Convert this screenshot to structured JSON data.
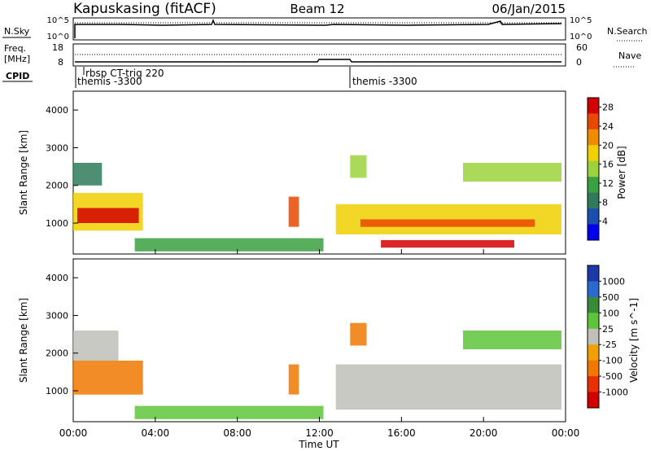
{
  "header": {
    "station": "Kapuskasing (fitACF)",
    "beam": "Beam 12",
    "date": "06/Jan/2015"
  },
  "nsky": {
    "label": "N.Sky",
    "tick_top": "10^5",
    "tick_bottom": "10^0",
    "right_label": "N.Search",
    "right_tick_top": "10^5",
    "right_tick_bottom": "10^0"
  },
  "freq": {
    "label_line1": "Freq.",
    "label_line2": "[MHz]",
    "tick_top": "18",
    "tick_bottom": "8",
    "right_label": "Nave",
    "right_tick_top": "60",
    "right_tick_bottom": "0"
  },
  "cpid": {
    "label": "CPID",
    "entries": [
      {
        "text": "rbsp CT-trig 220",
        "hour": 0.5
      },
      {
        "text": "themis -3300",
        "hour": 0.3
      },
      {
        "text": "themis -3300",
        "hour": 13.5
      }
    ]
  },
  "x_axis": {
    "label": "Time UT",
    "ticks": [
      "00:00",
      "04:00",
      "08:00",
      "12:00",
      "16:00",
      "20:00",
      "00:00"
    ]
  },
  "colors": {
    "power": [
      "#0000ee",
      "#1a4fb0",
      "#2f7a5a",
      "#3aa040",
      "#9cd23c",
      "#f0d000",
      "#f08c00",
      "#e84800",
      "#d40000"
    ],
    "velocity": [
      "#1a3aa8",
      "#2a6ad0",
      "#3a8a3a",
      "#5ec43a",
      "#c0c0b8",
      "#f0a000",
      "#f07800",
      "#e83000",
      "#d00000"
    ],
    "ground_scatter": "#c0c0b8"
  },
  "chart_data": [
    {
      "type": "heatmap",
      "panel": "power",
      "ylabel": "Slant Range [km]",
      "xlabel": "",
      "xlim": [
        0,
        24
      ],
      "ylim": [
        180,
        4500
      ],
      "yticks": [
        "1000",
        "2000",
        "3000",
        "4000"
      ],
      "colorbar": {
        "label": "Power [dB]",
        "ticks": [
          "4",
          "8",
          "12",
          "16",
          "20",
          "24",
          "28"
        ],
        "range": [
          0,
          30
        ]
      },
      "regions": [
        {
          "t": [
            0.0,
            3.4
          ],
          "r": [
            800,
            1800
          ],
          "level": 5
        },
        {
          "t": [
            0.2,
            3.2
          ],
          "r": [
            1000,
            1400
          ],
          "level": 8
        },
        {
          "t": [
            0.0,
            1.4
          ],
          "r": [
            2000,
            2600
          ],
          "level": 2
        },
        {
          "t": [
            3.0,
            12.2
          ],
          "r": [
            250,
            600
          ],
          "level": 3
        },
        {
          "t": [
            10.5,
            11.0
          ],
          "r": [
            900,
            1700
          ],
          "level": 7
        },
        {
          "t": [
            12.8,
            23.8
          ],
          "r": [
            700,
            1500
          ],
          "level": 5
        },
        {
          "t": [
            14.0,
            22.5
          ],
          "r": [
            900,
            1100
          ],
          "level": 7
        },
        {
          "t": [
            15.0,
            21.5
          ],
          "r": [
            350,
            550
          ],
          "level": 8
        },
        {
          "t": [
            13.5,
            14.3
          ],
          "r": [
            2200,
            2800
          ],
          "level": 4
        },
        {
          "t": [
            19.0,
            23.8
          ],
          "r": [
            2100,
            2600
          ],
          "level": 4
        }
      ]
    },
    {
      "type": "heatmap",
      "panel": "velocity",
      "ylabel": "Slant Range [km]",
      "xlabel": "Time UT",
      "xlim": [
        0,
        24
      ],
      "ylim": [
        180,
        4500
      ],
      "yticks": [
        "1000",
        "2000",
        "3000",
        "4000"
      ],
      "colorbar": {
        "label": "Velocity [m s^-1]",
        "ticks": [
          "1000",
          "500",
          "100",
          "25",
          "-25",
          "-100",
          "-500",
          "-1000"
        ]
      },
      "regions": [
        {
          "t": [
            0.0,
            3.4
          ],
          "r": [
            900,
            1800
          ],
          "level": 6
        },
        {
          "t": [
            0.0,
            2.2
          ],
          "r": [
            1800,
            2600
          ],
          "level": 4
        },
        {
          "t": [
            3.0,
            12.2
          ],
          "r": [
            250,
            600
          ],
          "level": 3
        },
        {
          "t": [
            10.5,
            11.0
          ],
          "r": [
            900,
            1700
          ],
          "level": 6
        },
        {
          "t": [
            12.8,
            23.8
          ],
          "r": [
            500,
            1700
          ],
          "level": 4
        },
        {
          "t": [
            13.5,
            14.3
          ],
          "r": [
            2200,
            2800
          ],
          "level": 6
        },
        {
          "t": [
            19.0,
            23.8
          ],
          "r": [
            2100,
            2600
          ],
          "level": 3
        }
      ]
    }
  ]
}
